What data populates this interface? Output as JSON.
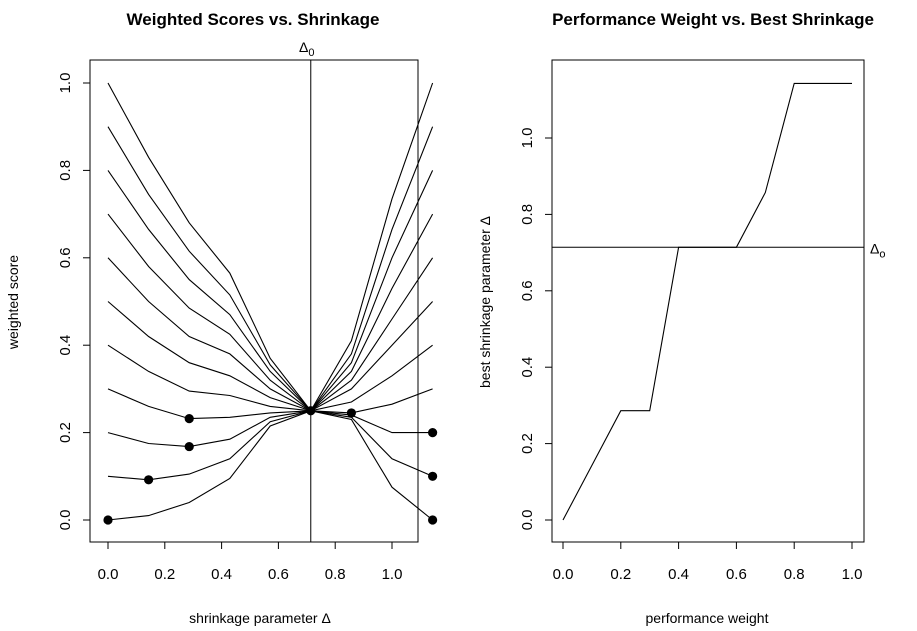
{
  "chart_data": [
    {
      "type": "line",
      "title": "Weighted Scores vs. Shrinkage",
      "xlabel": "shrinkage parameter Δ",
      "ylabel": "weighted score",
      "xlim": [
        0,
        1.143
      ],
      "ylim": [
        0,
        1
      ],
      "x_ticks": [
        "0.0",
        "0.2",
        "0.4",
        "0.6",
        "0.8",
        "1.0"
      ],
      "y_ticks": [
        "0.0",
        "0.2",
        "0.4",
        "0.6",
        "0.8",
        "1.0"
      ],
      "vline_x": 0.714,
      "vline_label": "Δ",
      "vline_label_sub": "0",
      "x": [
        0,
        0.143,
        0.286,
        0.429,
        0.571,
        0.714,
        0.857,
        1.0,
        1.143
      ],
      "series": [
        {
          "values": [
            0.0,
            0.01,
            0.04,
            0.095,
            0.215,
            0.25,
            0.23,
            0.075,
            0.0
          ]
        },
        {
          "values": [
            0.1,
            0.092,
            0.105,
            0.14,
            0.225,
            0.25,
            0.235,
            0.14,
            0.1
          ]
        },
        {
          "values": [
            0.2,
            0.175,
            0.168,
            0.185,
            0.235,
            0.25,
            0.24,
            0.2,
            0.2
          ]
        },
        {
          "values": [
            0.3,
            0.26,
            0.232,
            0.235,
            0.245,
            0.25,
            0.245,
            0.265,
            0.3
          ]
        },
        {
          "values": [
            0.4,
            0.34,
            0.295,
            0.285,
            0.26,
            0.25,
            0.27,
            0.33,
            0.4
          ]
        },
        {
          "values": [
            0.5,
            0.42,
            0.36,
            0.33,
            0.28,
            0.25,
            0.3,
            0.4,
            0.5
          ]
        },
        {
          "values": [
            0.6,
            0.5,
            0.42,
            0.38,
            0.3,
            0.25,
            0.32,
            0.46,
            0.6
          ]
        },
        {
          "values": [
            0.7,
            0.58,
            0.485,
            0.425,
            0.32,
            0.25,
            0.34,
            0.53,
            0.7
          ]
        },
        {
          "values": [
            0.8,
            0.665,
            0.55,
            0.47,
            0.34,
            0.25,
            0.36,
            0.6,
            0.8
          ]
        },
        {
          "values": [
            0.9,
            0.745,
            0.615,
            0.515,
            0.355,
            0.25,
            0.38,
            0.665,
            0.9
          ]
        },
        {
          "values": [
            1.0,
            0.83,
            0.68,
            0.565,
            0.37,
            0.25,
            0.41,
            0.735,
            1.0
          ]
        }
      ],
      "min_points": [
        {
          "x": 0.0,
          "y": 0.0
        },
        {
          "x": 0.143,
          "y": 0.092
        },
        {
          "x": 0.286,
          "y": 0.168
        },
        {
          "x": 0.286,
          "y": 0.232
        },
        {
          "x": 0.714,
          "y": 0.25
        },
        {
          "x": 0.857,
          "y": 0.245
        },
        {
          "x": 1.143,
          "y": 0.2
        },
        {
          "x": 1.143,
          "y": 0.1
        },
        {
          "x": 1.143,
          "y": 0.0
        }
      ]
    },
    {
      "type": "line",
      "title": "Performance Weight vs. Best Shrinkage",
      "xlabel": "performance weight",
      "ylabel": "best shrinkage parameter Δ",
      "xlim": [
        0,
        1
      ],
      "ylim": [
        0,
        1.143
      ],
      "x_ticks": [
        "0.0",
        "0.2",
        "0.4",
        "0.6",
        "0.8",
        "1.0"
      ],
      "y_ticks": [
        "0.0",
        "0.2",
        "0.4",
        "0.6",
        "0.8",
        "1.0"
      ],
      "hline_y": 0.714,
      "hline_label": "Δ",
      "hline_label_sub": "o",
      "x": [
        0,
        0.1,
        0.2,
        0.3,
        0.4,
        0.5,
        0.6,
        0.7,
        0.8,
        0.9,
        1.0
      ],
      "values": [
        0,
        0.143,
        0.286,
        0.286,
        0.714,
        0.714,
        0.714,
        0.857,
        1.143,
        1.143,
        1.143
      ]
    }
  ]
}
